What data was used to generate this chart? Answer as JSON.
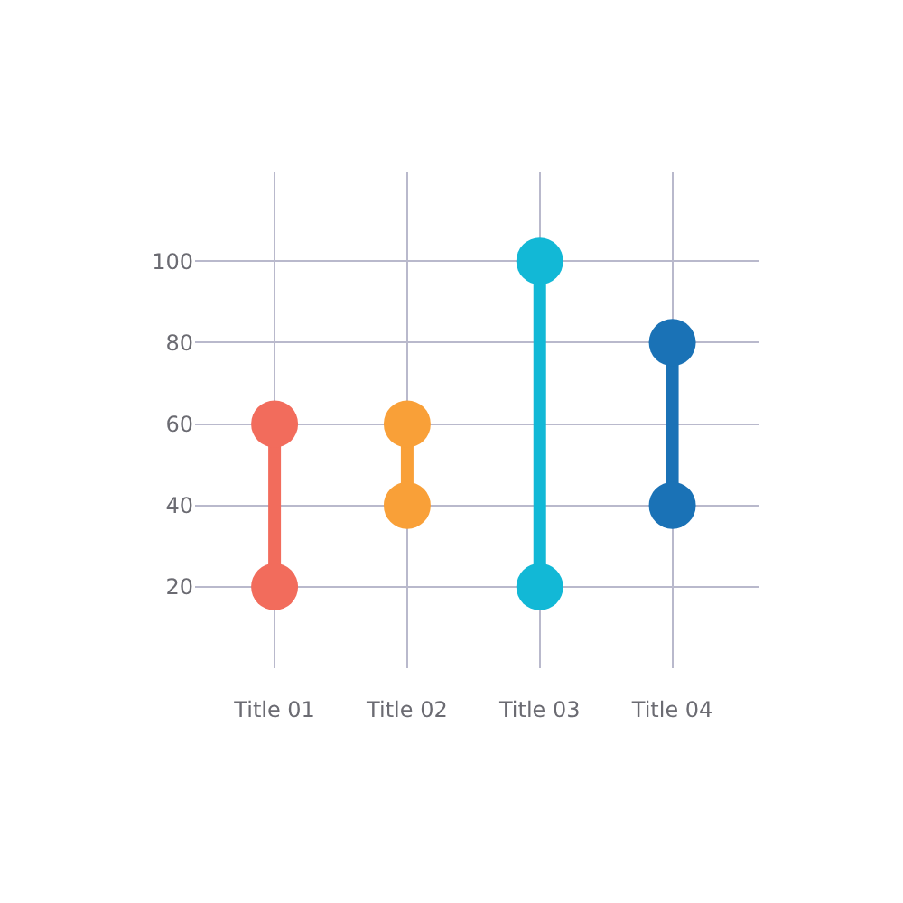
{
  "chart_data": {
    "type": "line",
    "categories": [
      "Title 01",
      "Title 02",
      "Title 03",
      "Title 04"
    ],
    "series": [
      {
        "x": [
          "Title 01",
          "Title 01"
        ],
        "values": [
          20,
          60
        ],
        "color": "#f26c5c"
      },
      {
        "x": [
          "Title 02",
          "Title 02"
        ],
        "values": [
          40,
          60
        ],
        "color": "#f9a038"
      },
      {
        "x": [
          "Title 03",
          "Title 03"
        ],
        "values": [
          20,
          100
        ],
        "color": "#12b8d6"
      },
      {
        "x": [
          "Title 04",
          "Title 04"
        ],
        "values": [
          40,
          80
        ],
        "color": "#1a72b6"
      }
    ],
    "marker": "circle",
    "ylim": [
      0,
      122
    ],
    "yticks": [
      20,
      40,
      60,
      80,
      100
    ],
    "grid": true
  }
}
